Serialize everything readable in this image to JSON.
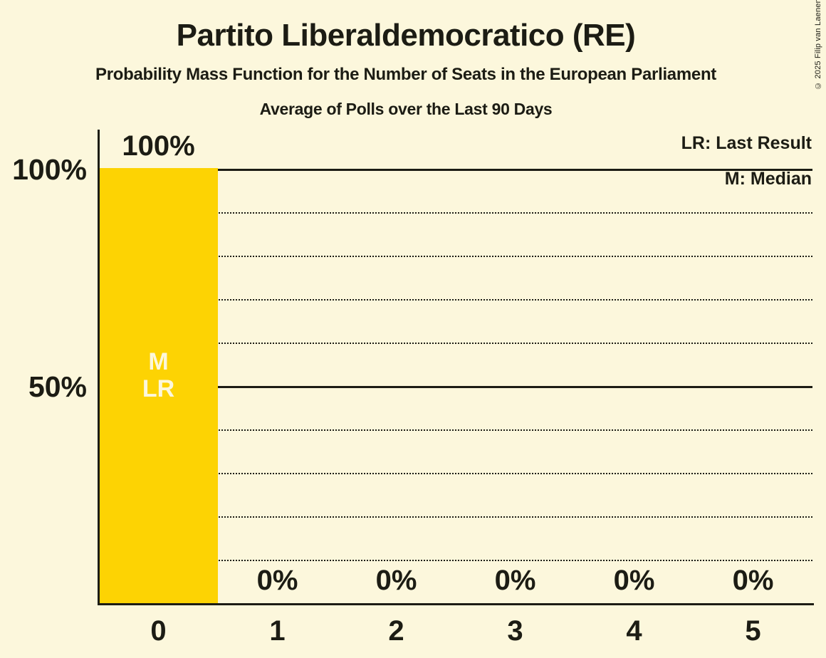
{
  "header": {
    "title": "Partito Liberaldemocratico (RE)",
    "subtitle": "Probability Mass Function for the Number of Seats in the European Parliament",
    "subsubtitle": "Average of Polls over the Last 90 Days"
  },
  "copyright": "© 2025 Filip van Laenen",
  "legend": {
    "last_result": "LR: Last Result",
    "median": "M: Median"
  },
  "chart_data": {
    "type": "bar",
    "title": "Partito Liberaldemocratico (RE)",
    "categories": [
      "0",
      "1",
      "2",
      "3",
      "4",
      "5"
    ],
    "values": [
      100,
      0,
      0,
      0,
      0,
      0
    ],
    "value_labels": [
      "100%",
      "0%",
      "0%",
      "0%",
      "0%",
      "0%"
    ],
    "annotations": [
      {
        "category": "0",
        "lines": [
          "M",
          "LR"
        ]
      }
    ],
    "y_ticks": [
      {
        "value": 100,
        "label": "100%"
      },
      {
        "value": 50,
        "label": "50%"
      }
    ],
    "gridlines": {
      "solid": [
        50,
        100
      ],
      "dotted": [
        10,
        20,
        30,
        40,
        60,
        70,
        80,
        90
      ]
    },
    "ylim": [
      0,
      100
    ],
    "legend_position": "top-right",
    "grid": true,
    "colors": {
      "background": "#FCF7DC",
      "bar": "#FDD303",
      "text": "#1C1C14",
      "bar_label": "#FCF7DC"
    }
  }
}
